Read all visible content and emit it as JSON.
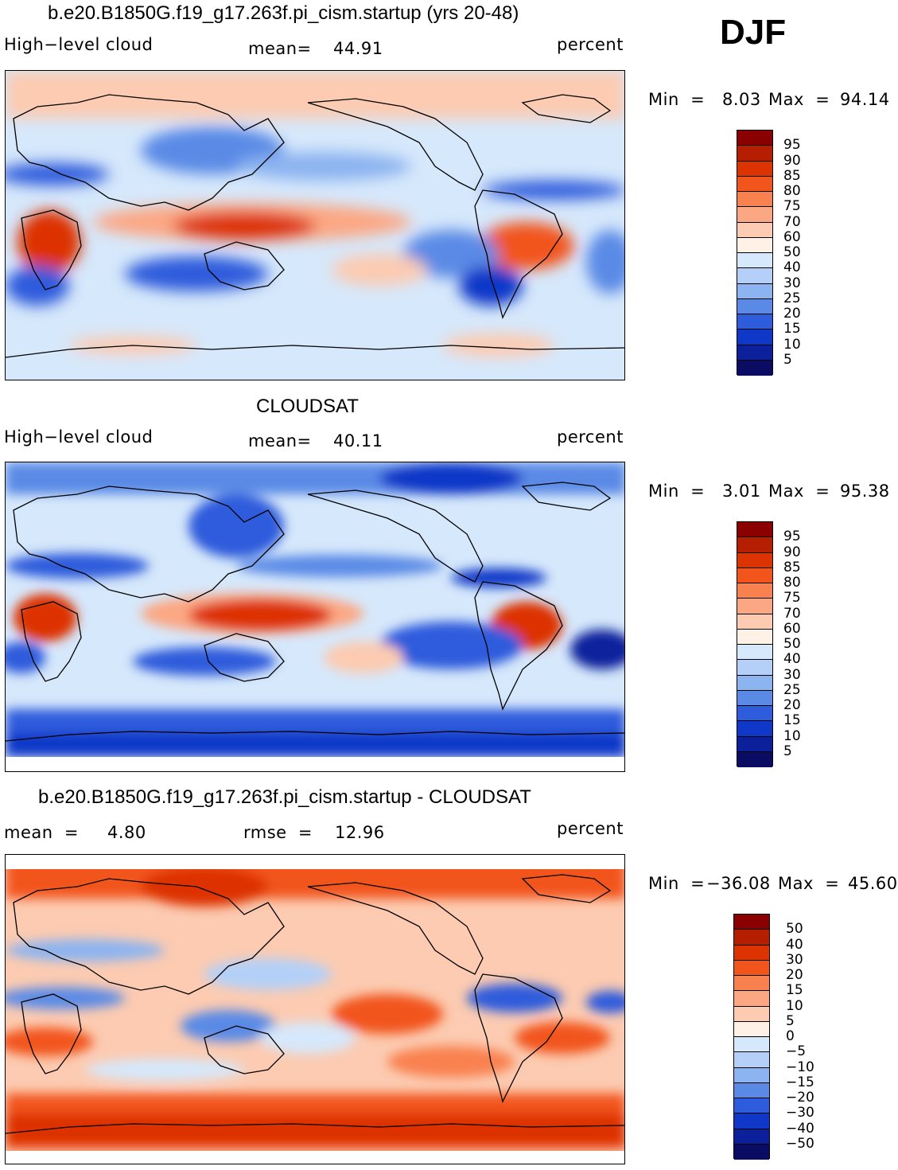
{
  "season": "DJF",
  "panels": [
    {
      "title": "b.e20.B1850G.f19_g17.263f.pi_cism.startup (yrs 20-48)",
      "variable": "High−level cloud",
      "stat_label": "mean=",
      "stat_value": "44.91",
      "units": "percent",
      "min_label": "Min  =",
      "min_value": "8.03",
      "max_label": "Max  =",
      "max_value": "94.14"
    },
    {
      "title": "CLOUDSAT",
      "variable": "High−level cloud",
      "stat_label": "mean=",
      "stat_value": "40.11",
      "units": "percent",
      "min_label": "Min  =",
      "min_value": "3.01",
      "max_label": "Max  =",
      "max_value": "95.38"
    },
    {
      "title": "b.e20.B1850G.f19_g17.263f.pi_cism.startup - CLOUDSAT",
      "stat_label": "mean  =",
      "stat_value": "4.80",
      "rmse_label": "rmse  =",
      "rmse_value": "12.96",
      "units": "percent",
      "min_label": "Min  =",
      "min_value": "−36.08",
      "max_label": "Max  =",
      "max_value": "45.60"
    }
  ],
  "legend_abs": {
    "labels": [
      "95",
      "90",
      "85",
      "80",
      "75",
      "70",
      "60",
      "50",
      "40",
      "30",
      "25",
      "20",
      "15",
      "10",
      "5"
    ],
    "colors": [
      "#8b0000",
      "#b51e00",
      "#dd3300",
      "#f2551b",
      "#f98150",
      "#fca783",
      "#fccbb1",
      "#fff1e6",
      "#d6e8fb",
      "#b4d0f8",
      "#8cb4f0",
      "#5a8ae6",
      "#2d5cdc",
      "#0f38c8",
      "#0c209c",
      "#0a0c64"
    ]
  },
  "legend_diff": {
    "labels": [
      "50",
      "40",
      "30",
      "20",
      "15",
      "10",
      "5",
      "0",
      "−5",
      "−10",
      "−15",
      "−20",
      "−30",
      "−40",
      "−50"
    ],
    "colors": [
      "#8b0000",
      "#b51e00",
      "#dd3300",
      "#f2551b",
      "#f98150",
      "#fca783",
      "#fccbb1",
      "#fff1e6",
      "#d6e8fb",
      "#b4d0f8",
      "#8cb4f0",
      "#5a8ae6",
      "#2d5cdc",
      "#0f38c8",
      "#0c209c",
      "#0a0c64"
    ]
  }
}
